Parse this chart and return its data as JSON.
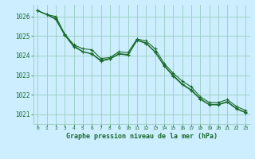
{
  "title": "Graphe pression niveau de la mer (hPa)",
  "bg_color": "#cceeff",
  "plot_bg_color": "#cceeff",
  "grid_color": "#99ccbb",
  "line_color": "#1a6b2a",
  "xlim": [
    -0.5,
    23.5
  ],
  "ylim": [
    1020.5,
    1026.6
  ],
  "yticks": [
    1021,
    1022,
    1023,
    1024,
    1025,
    1026
  ],
  "xticks": [
    0,
    1,
    2,
    3,
    4,
    5,
    6,
    7,
    8,
    9,
    10,
    11,
    12,
    13,
    14,
    15,
    16,
    17,
    18,
    19,
    20,
    21,
    22,
    23
  ],
  "series1": [
    1026.3,
    1026.1,
    1026.0,
    1025.1,
    1024.55,
    1024.35,
    1024.3,
    1023.85,
    1023.9,
    1024.2,
    1024.15,
    1024.85,
    1024.75,
    1024.35,
    1023.6,
    1023.1,
    1022.7,
    1022.4,
    1021.9,
    1021.6,
    1021.6,
    1021.75,
    1021.4,
    1021.2
  ],
  "series2": [
    1026.3,
    1026.1,
    1025.9,
    1025.05,
    1024.5,
    1024.2,
    1024.1,
    1023.75,
    1023.85,
    1024.1,
    1024.05,
    1024.8,
    1024.65,
    1024.2,
    1023.5,
    1023.0,
    1022.55,
    1022.25,
    1021.8,
    1021.5,
    1021.5,
    1021.65,
    1021.3,
    1021.1
  ],
  "series3": [
    1026.3,
    1026.1,
    1025.85,
    1025.05,
    1024.45,
    1024.2,
    1024.08,
    1023.72,
    1023.82,
    1024.08,
    1024.02,
    1024.78,
    1024.62,
    1024.18,
    1023.48,
    1022.95,
    1022.52,
    1022.22,
    1021.77,
    1021.48,
    1021.48,
    1021.62,
    1021.28,
    1021.08
  ]
}
